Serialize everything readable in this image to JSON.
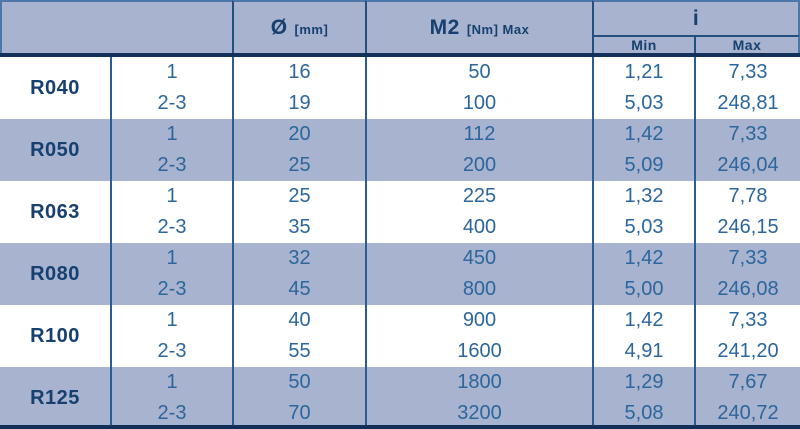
{
  "table": {
    "header": {
      "diameter_symbol": "Ø",
      "diameter_unit": "[mm]",
      "torque_symbol": "M2",
      "torque_unit": "[Nm] Max",
      "ratio_label": "i",
      "ratio_min_label": "Min",
      "ratio_max_label": "Max"
    },
    "groups": [
      {
        "model": "R040",
        "rows": [
          {
            "stage": "1",
            "diameter": "16",
            "torque": "50",
            "i_min": "1,21",
            "i_max": "7,33"
          },
          {
            "stage": "2-3",
            "diameter": "19",
            "torque": "100",
            "i_min": "5,03",
            "i_max": "248,81"
          }
        ]
      },
      {
        "model": "R050",
        "rows": [
          {
            "stage": "1",
            "diameter": "20",
            "torque": "112",
            "i_min": "1,42",
            "i_max": "7,33"
          },
          {
            "stage": "2-3",
            "diameter": "25",
            "torque": "200",
            "i_min": "5,09",
            "i_max": "246,04"
          }
        ]
      },
      {
        "model": "R063",
        "rows": [
          {
            "stage": "1",
            "diameter": "25",
            "torque": "225",
            "i_min": "1,32",
            "i_max": "7,78"
          },
          {
            "stage": "2-3",
            "diameter": "35",
            "torque": "400",
            "i_min": "5,03",
            "i_max": "246,15"
          }
        ]
      },
      {
        "model": "R080",
        "rows": [
          {
            "stage": "1",
            "diameter": "32",
            "torque": "450",
            "i_min": "1,42",
            "i_max": "7,33"
          },
          {
            "stage": "2-3",
            "diameter": "45",
            "torque": "800",
            "i_min": "5,00",
            "i_max": "246,08"
          }
        ]
      },
      {
        "model": "R100",
        "rows": [
          {
            "stage": "1",
            "diameter": "40",
            "torque": "900",
            "i_min": "1,42",
            "i_max": "7,33"
          },
          {
            "stage": "2-3",
            "diameter": "55",
            "torque": "1600",
            "i_min": "4,91",
            "i_max": "241,20"
          }
        ]
      },
      {
        "model": "R125",
        "rows": [
          {
            "stage": "1",
            "diameter": "50",
            "torque": "1800",
            "i_min": "1,29",
            "i_max": "7,67"
          },
          {
            "stage": "2-3",
            "diameter": "70",
            "torque": "3200",
            "i_min": "5,08",
            "i_max": "240,72"
          }
        ]
      }
    ]
  },
  "colors": {
    "band": "#a8b3cf",
    "header_text": "#16406f",
    "value_text": "#2b669c",
    "divider": "#2a5d92",
    "thick_line": "#12305a",
    "header_outline": "#4d77a9"
  }
}
